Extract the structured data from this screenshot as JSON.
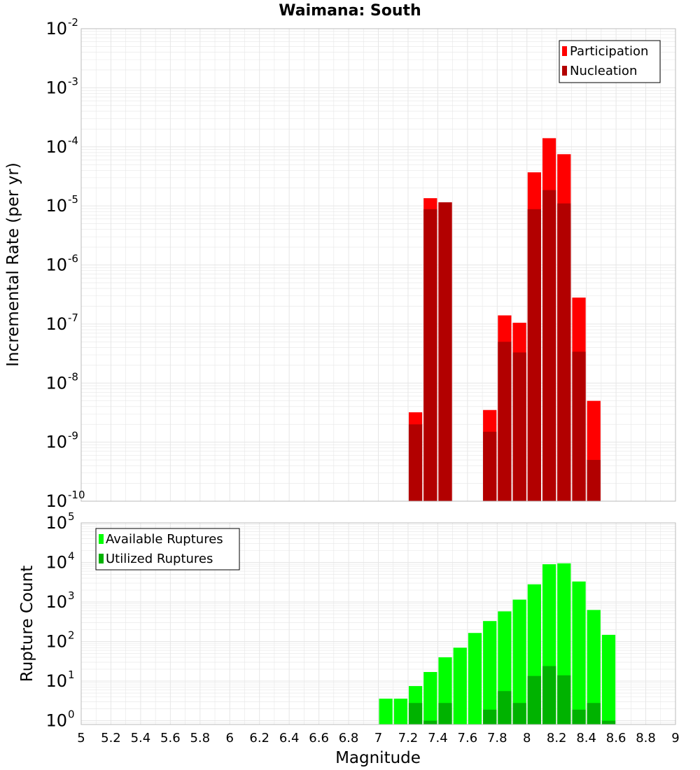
{
  "chart_data": [
    {
      "type": "bar",
      "panel": "top",
      "title": "Waimana: South",
      "xlabel": "",
      "ylabel": "Incremental Rate (per yr)",
      "xlim": [
        5,
        9
      ],
      "ylim": [
        1e-10,
        0.01
      ],
      "yscale": "log",
      "grid": true,
      "legend_position": "top-right",
      "bar_width": 0.1,
      "x": [
        7.25,
        7.35,
        7.45,
        7.75,
        7.85,
        7.95,
        8.05,
        8.15,
        8.25,
        8.35,
        8.45
      ],
      "series": [
        {
          "name": "Participation",
          "color": "#ff0000",
          "values": [
            3.2e-09,
            1.35e-05,
            1.15e-05,
            3.5e-09,
            1.4e-07,
            1.05e-07,
            3.7e-05,
            0.00014,
            7.5e-05,
            2.8e-07,
            5e-09
          ]
        },
        {
          "name": "Nucleation",
          "color": "#b20000",
          "values": [
            2e-09,
            8.8e-06,
            1.15e-05,
            1.5e-09,
            5e-08,
            3.3e-08,
            8.8e-06,
            1.85e-05,
            1.1e-05,
            3.4e-08,
            5e-10
          ]
        }
      ]
    },
    {
      "type": "bar",
      "panel": "bottom",
      "title": "",
      "xlabel": "Magnitude",
      "ylabel": "Rupture Count",
      "xlim": [
        5,
        9
      ],
      "ylim": [
        0.8,
        100000
      ],
      "yscale": "log",
      "grid": true,
      "legend_position": "top-left",
      "bar_width": 0.1,
      "x": [
        7.05,
        7.15,
        7.25,
        7.35,
        7.45,
        7.55,
        7.65,
        7.75,
        7.85,
        7.95,
        8.05,
        8.15,
        8.25,
        8.35,
        8.45,
        8.55
      ],
      "series": [
        {
          "name": "Available Ruptures",
          "color": "#00ff00",
          "values": [
            3.6,
            3.6,
            7.5,
            17,
            40,
            70,
            165,
            330,
            580,
            1150,
            2800,
            9000,
            9500,
            3300,
            630,
            148
          ]
        },
        {
          "name": "Utilized Ruptures",
          "color": "#00b200",
          "values": [
            null,
            null,
            2.8,
            1,
            2.8,
            null,
            null,
            1.9,
            5.6,
            2.8,
            13.5,
            24,
            14,
            1.9,
            2.8,
            1
          ]
        }
      ]
    }
  ],
  "x_ticks": [
    "5",
    "5.2",
    "5.4",
    "5.6",
    "5.8",
    "6",
    "6.2",
    "6.4",
    "6.6",
    "6.8",
    "7",
    "7.2",
    "7.4",
    "7.6",
    "7.8",
    "8",
    "8.2",
    "8.4",
    "8.6",
    "8.8",
    "9"
  ],
  "top_y_ticks": [
    {
      "base": "10",
      "exp": "-10"
    },
    {
      "base": "10",
      "exp": "-9"
    },
    {
      "base": "10",
      "exp": "-8"
    },
    {
      "base": "10",
      "exp": "-7"
    },
    {
      "base": "10",
      "exp": "-6"
    },
    {
      "base": "10",
      "exp": "-5"
    },
    {
      "base": "10",
      "exp": "-4"
    },
    {
      "base": "10",
      "exp": "-3"
    },
    {
      "base": "10",
      "exp": "-2"
    }
  ],
  "bottom_y_ticks": [
    {
      "base": "10",
      "exp": "0"
    },
    {
      "base": "10",
      "exp": "1"
    },
    {
      "base": "10",
      "exp": "2"
    },
    {
      "base": "10",
      "exp": "3"
    },
    {
      "base": "10",
      "exp": "4"
    },
    {
      "base": "10",
      "exp": "5"
    }
  ],
  "colors": {
    "grid": "#e6e6e6",
    "axis": "#bbbbbb",
    "text": "#000000"
  }
}
